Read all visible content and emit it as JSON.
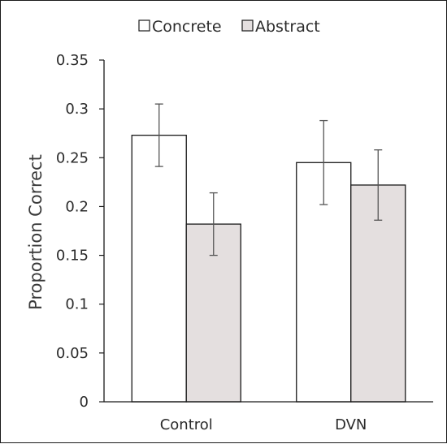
{
  "chart_data": {
    "type": "bar",
    "categories": [
      "Control",
      "DVN"
    ],
    "series": [
      {
        "name": "Concrete",
        "values": [
          0.273,
          0.245
        ],
        "errors": [
          0.032,
          0.043
        ],
        "color": "#ffffff"
      },
      {
        "name": "Abstract",
        "values": [
          0.182,
          0.222
        ],
        "errors": [
          0.032,
          0.036
        ],
        "color": "#e4dfdf"
      }
    ],
    "ylabel": "Proportion Correct",
    "xlabel": "",
    "ylim": [
      0,
      0.35
    ],
    "yticks": [
      "0",
      "0.05",
      "0.1",
      "0.15",
      "0.2",
      "0.25",
      "0.3",
      "0.35"
    ],
    "grid": false,
    "legend_position": "top-center",
    "colors": {
      "bar_stroke": "#1a1a1a",
      "error_bar": "#555555",
      "axis": "#1a1a1a"
    }
  }
}
